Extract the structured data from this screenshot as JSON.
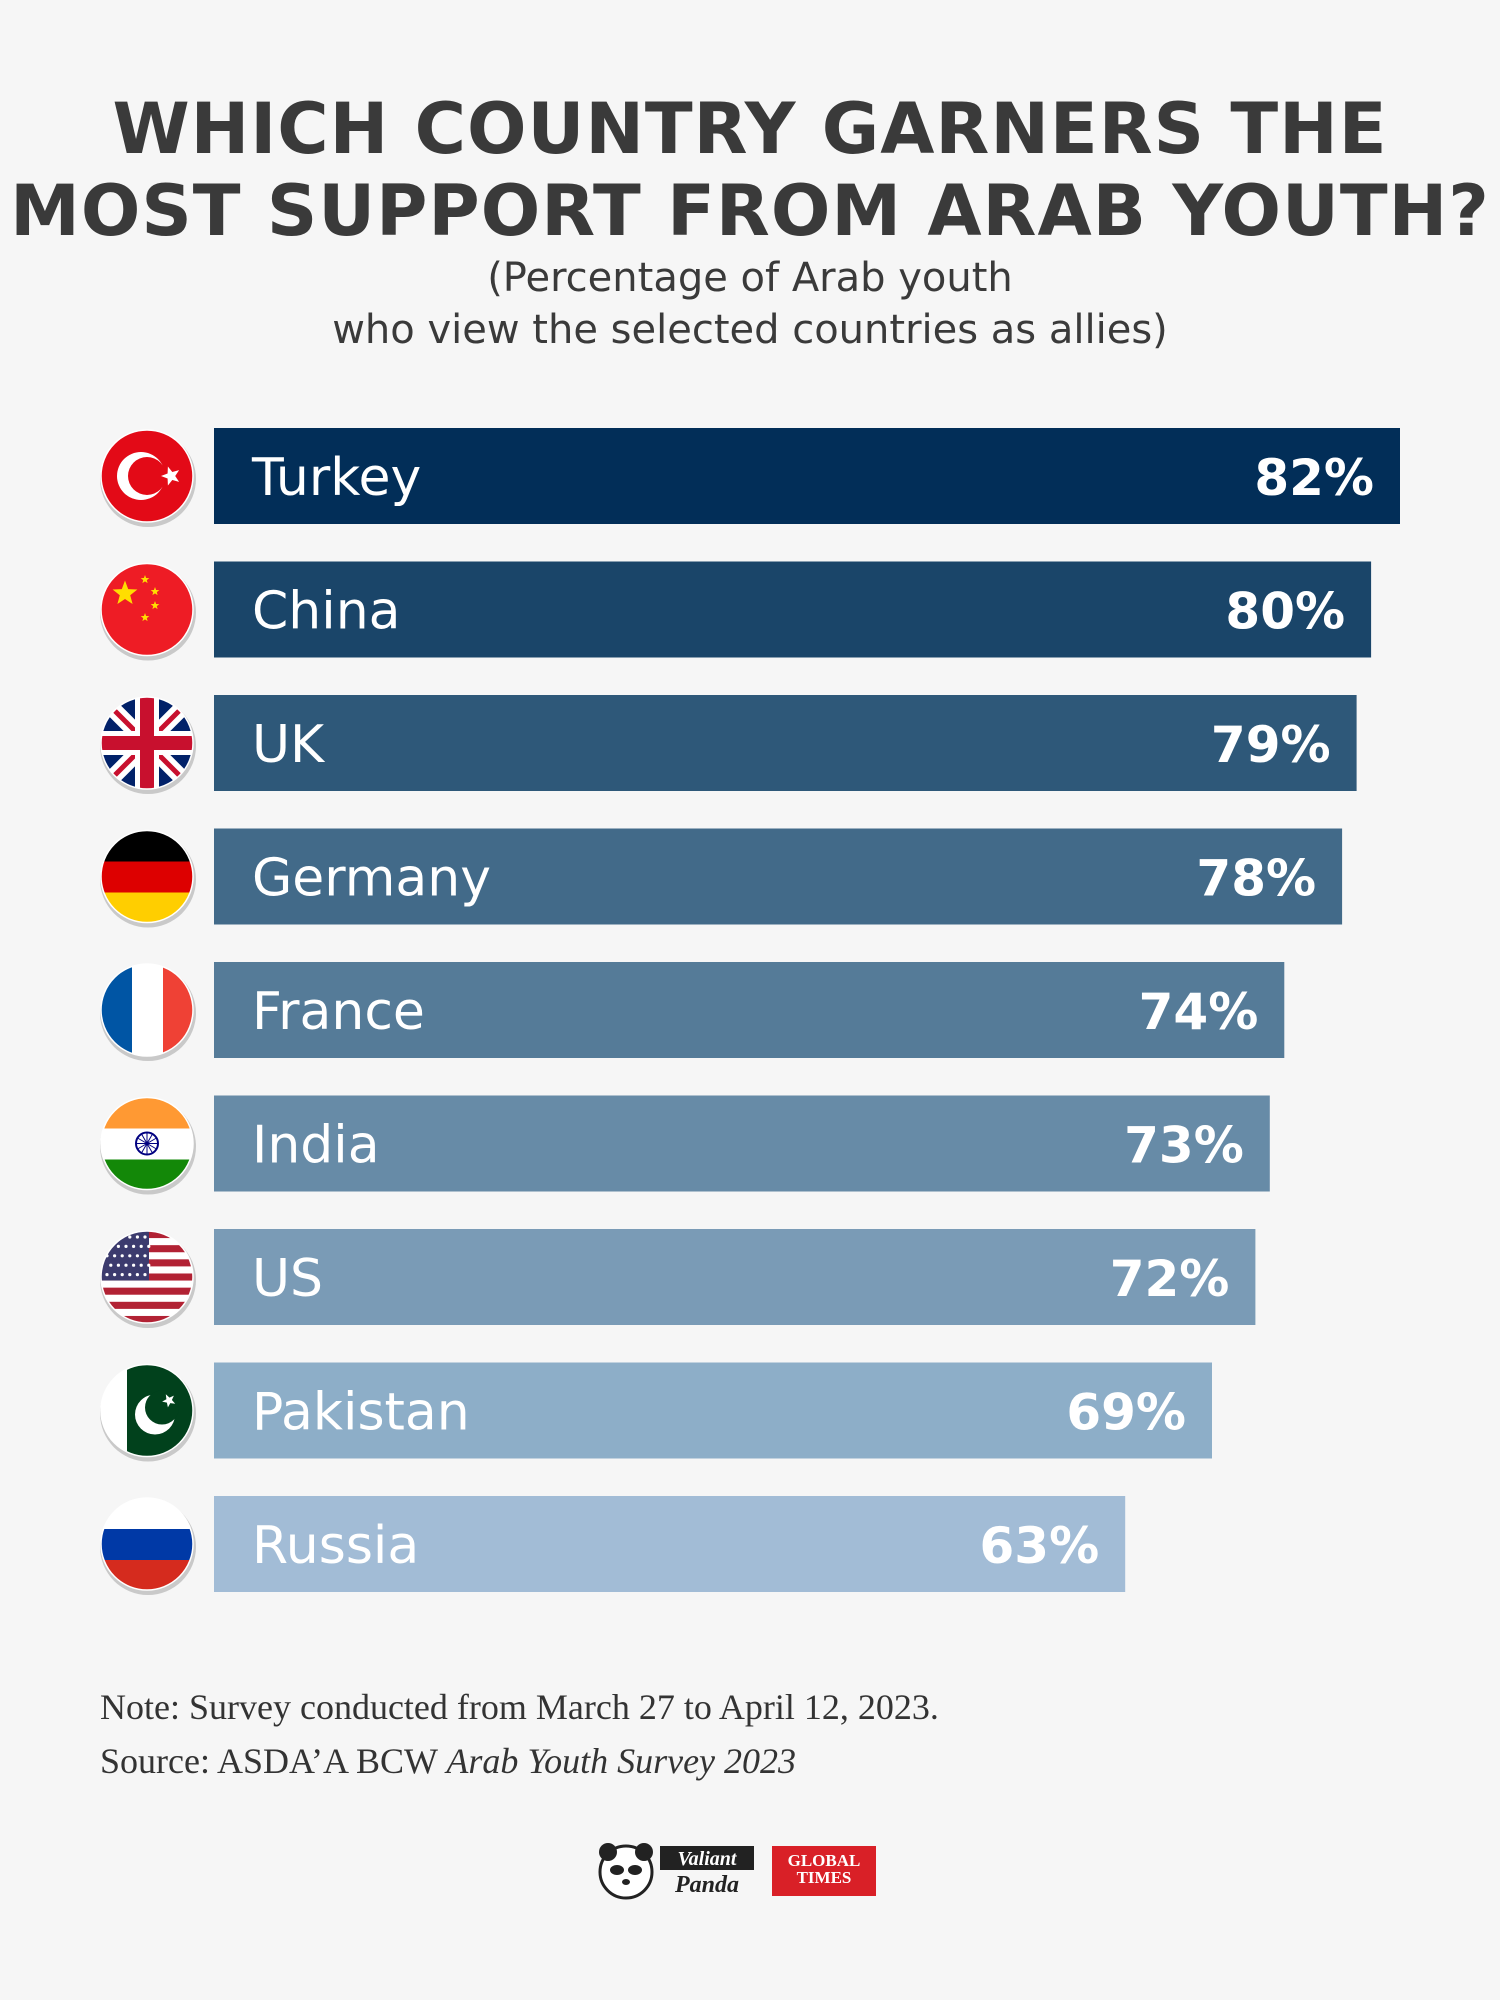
{
  "title_line1": "WHICH COUNTRY GARNERS THE",
  "title_line2": "MOST SUPPORT FROM ARAB YOUTH?",
  "subtitle_line1": "(Percentage of Arab youth",
  "subtitle_line2": "who view the selected countries as allies)",
  "chart_data": {
    "type": "bar",
    "orientation": "horizontal",
    "title": "WHICH COUNTRY GARNERS THE MOST SUPPORT FROM ARAB YOUTH?",
    "subtitle": "(Percentage of Arab youth who view the selected countries as allies)",
    "categories": [
      "Turkey",
      "China",
      "UK",
      "Germany",
      "France",
      "India",
      "US",
      "Pakistan",
      "Russia"
    ],
    "values": [
      82,
      80,
      79,
      78,
      74,
      73,
      72,
      69,
      63
    ],
    "value_labels": [
      "82%",
      "80%",
      "79%",
      "78%",
      "74%",
      "73%",
      "72%",
      "69%",
      "63%"
    ],
    "bar_colors": [
      "#022e58",
      "#1a4569",
      "#2e5879",
      "#426a89",
      "#557b98",
      "#678ba7",
      "#7a9bb6",
      "#8daec8",
      "#a2bcd6"
    ],
    "flag_icons": [
      "turkey-flag-icon",
      "china-flag-icon",
      "uk-flag-icon",
      "germany-flag-icon",
      "france-flag-icon",
      "india-flag-icon",
      "us-flag-icon",
      "pakistan-flag-icon",
      "russia-flag-icon"
    ],
    "xlabel": "",
    "ylabel": "",
    "grid": false
  },
  "note": "Note: Survey conducted from March 27 to April 12, 2023.",
  "source_prefix": "Source: ASDA’A BCW ",
  "source_title": "Arab Youth Survey 2023",
  "logos": {
    "panda_line1": "Valiant",
    "panda_line2": "Panda",
    "gt_line1": "GLOBAL",
    "gt_line2": "TIMES"
  }
}
